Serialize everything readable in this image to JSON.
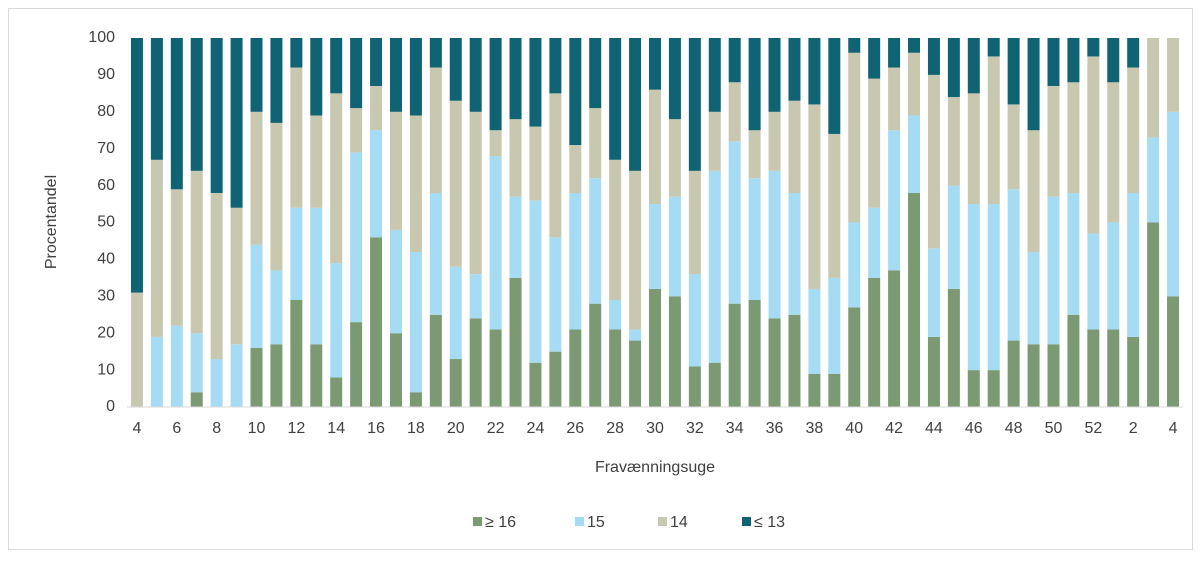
{
  "chart_data": {
    "type": "stacked_bar",
    "x_label": "Fravænningsuge",
    "y_label": "Procentandel",
    "categories": [
      "4",
      null,
      "6",
      null,
      "8",
      null,
      "10",
      null,
      "12",
      null,
      "14",
      null,
      "16",
      null,
      "18",
      null,
      "20",
      null,
      "22",
      null,
      "24",
      null,
      "26",
      null,
      "28",
      null,
      "30",
      null,
      "32",
      null,
      "34",
      null,
      "36",
      null,
      "38",
      null,
      "40",
      null,
      "42",
      null,
      "44",
      null,
      "46",
      null,
      "48",
      null,
      "50",
      null,
      "52",
      null,
      "2",
      null,
      "4"
    ],
    "series": [
      {
        "name": "≥ 16",
        "color": "#7b9a73",
        "values": [
          0,
          0,
          0,
          4,
          0,
          0,
          16,
          17,
          29,
          17,
          8,
          23,
          46,
          20,
          4,
          25,
          13,
          24,
          21,
          35,
          12,
          15,
          21,
          28,
          21,
          18,
          32,
          30,
          11,
          12,
          28,
          29,
          24,
          25,
          9,
          9,
          27,
          35,
          37,
          58,
          19,
          32,
          10,
          10,
          18,
          17,
          17,
          25,
          21,
          21,
          19,
          50,
          30
        ]
      },
      {
        "name": "15",
        "color": "#a6dcf3",
        "values": [
          0,
          19,
          22,
          16,
          13,
          17,
          28,
          20,
          25,
          37,
          31,
          46,
          29,
          28,
          38,
          33,
          25,
          12,
          47,
          22,
          44,
          31,
          37,
          34,
          8,
          3,
          23,
          27,
          25,
          52,
          44,
          33,
          40,
          33,
          23,
          26,
          23,
          19,
          38,
          21,
          24,
          28,
          45,
          45,
          41,
          25,
          40,
          33,
          26,
          29,
          39,
          23,
          50
        ]
      },
      {
        "name": "14",
        "color": "#c8c7b0",
        "values": [
          31,
          48,
          37,
          44,
          45,
          37,
          36,
          40,
          38,
          25,
          46,
          12,
          12,
          32,
          37,
          34,
          45,
          44,
          7,
          21,
          20,
          39,
          13,
          19,
          38,
          43,
          31,
          21,
          28,
          16,
          16,
          13,
          16,
          25,
          50,
          39,
          46,
          35,
          17,
          17,
          47,
          24,
          30,
          40,
          23,
          33,
          30,
          30,
          48,
          38,
          34,
          27,
          20
        ]
      },
      {
        "name": "≤ 13",
        "color": "#106373",
        "values": [
          69,
          33,
          41,
          36,
          42,
          46,
          20,
          23,
          8,
          21,
          15,
          19,
          13,
          20,
          21,
          8,
          17,
          20,
          25,
          22,
          24,
          15,
          29,
          19,
          33,
          36,
          14,
          22,
          36,
          20,
          12,
          25,
          20,
          17,
          18,
          26,
          4,
          11,
          8,
          4,
          10,
          16,
          15,
          5,
          18,
          25,
          13,
          12,
          5,
          12,
          8,
          0,
          0
        ]
      }
    ],
    "ylim": [
      0,
      100
    ],
    "yticks": [
      0,
      10,
      20,
      30,
      40,
      50,
      60,
      70,
      80,
      90,
      100
    ],
    "legend": "bottom"
  }
}
